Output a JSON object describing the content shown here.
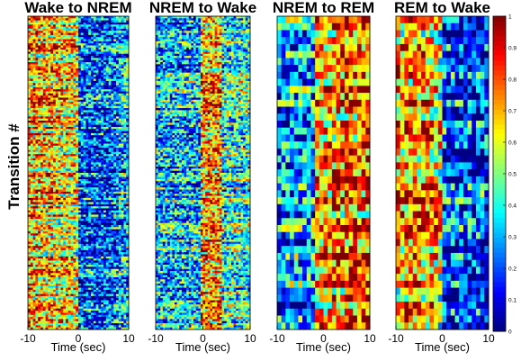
{
  "chart_data": {
    "type": "heatmap",
    "ylabel": "Transition #",
    "colormap": "jet",
    "panels": [
      {
        "name": "Wake to NREM",
        "title": "Wake to NREM",
        "xlabel": "Time (sec)",
        "x_ticks": [
          -10,
          0,
          10
        ],
        "xlim": [
          -10,
          10
        ],
        "rows": 150,
        "pattern": "high activity before 0 sec, low activity after 0 sec"
      },
      {
        "name": "NREM to Wake",
        "title": "NREM to Wake",
        "xlabel": "Time (sec)",
        "x_ticks": [
          -10,
          0,
          10
        ],
        "xlim": [
          -10,
          10
        ],
        "rows": 150,
        "pattern": "low activity before 0 sec, peak near 0 sec"
      },
      {
        "name": "NREM to REM",
        "title": "NREM to REM",
        "xlabel": "Time (sec)",
        "x_ticks": [
          -10,
          0,
          10
        ],
        "xlim": [
          -10,
          10
        ],
        "rows": 45,
        "pattern": "low activity before 0 sec, high activity after 0 sec"
      },
      {
        "name": "REM to Wake",
        "title": "REM to Wake",
        "xlabel": "Time (sec)",
        "x_ticks": [
          -10,
          0,
          10
        ],
        "xlim": [
          -10,
          10
        ],
        "rows": 45,
        "pattern": "high activity before 0 sec, low activity after 0 sec"
      }
    ],
    "colorbar": {
      "range": [
        0,
        1
      ],
      "ticks": [
        0,
        0.1,
        0.2,
        0.3,
        0.4,
        0.5,
        0.6,
        0.7,
        0.8,
        0.9,
        1
      ]
    }
  }
}
